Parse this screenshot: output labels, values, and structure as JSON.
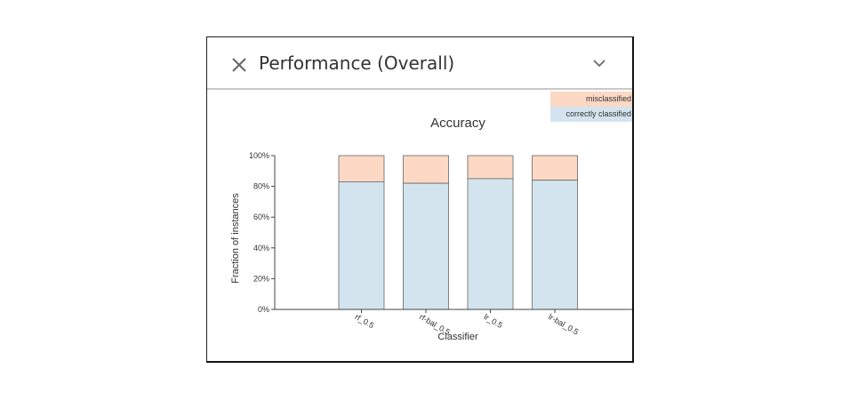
{
  "panel": {
    "title": "Performance (Overall)",
    "close_icon": "close-icon",
    "expand_icon": "chevron-down-icon"
  },
  "colors": {
    "misclassified": "#fcd8c5",
    "correct": "#d3e4ef",
    "bar_stroke": "#666666",
    "axis": "#444444"
  },
  "chart_data": {
    "type": "bar",
    "stacked": true,
    "title": "Accuracy",
    "xlabel": "Classifier",
    "ylabel": "Fraction of instances",
    "categories": [
      "rf_0.5",
      "rf-bal_0.5",
      "lr_0.5",
      "lr-bal_0.5"
    ],
    "series": [
      {
        "name": "correctly classified",
        "values": [
          0.83,
          0.82,
          0.85,
          0.84
        ]
      },
      {
        "name": "misclassified",
        "values": [
          0.17,
          0.18,
          0.15,
          0.16
        ]
      }
    ],
    "ylim": [
      0,
      1
    ],
    "yticks": [
      "0%",
      "20%",
      "40%",
      "60%",
      "80%",
      "100%"
    ],
    "legend_position": "top-right",
    "legend": [
      "misclassified",
      "correctly classified"
    ],
    "grid": false
  }
}
